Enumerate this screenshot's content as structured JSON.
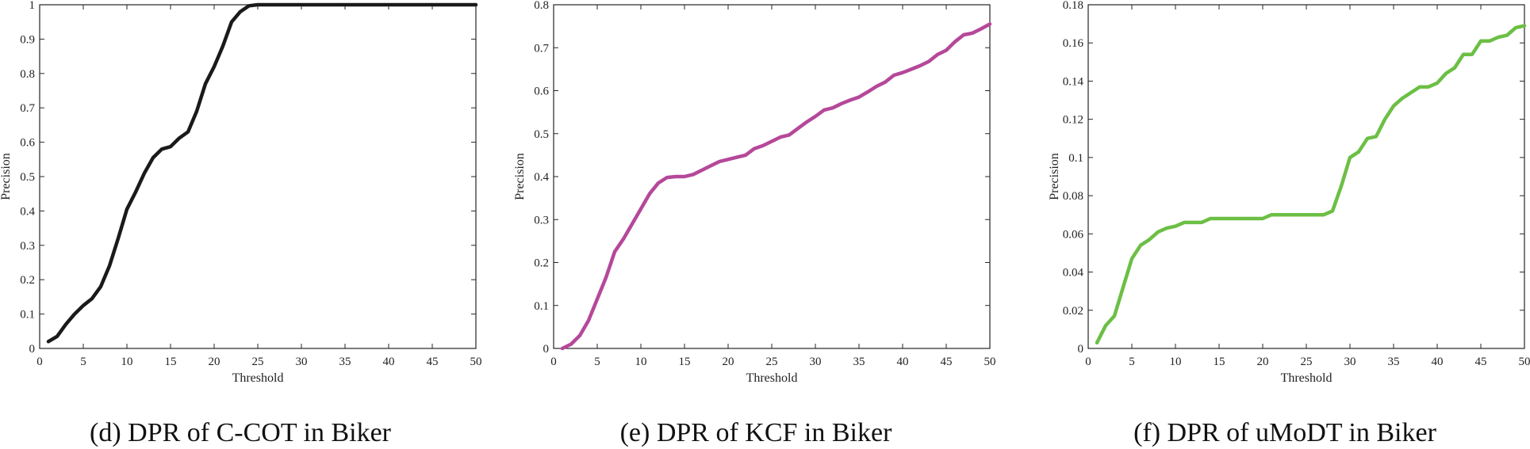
{
  "chart_data": [
    {
      "type": "line",
      "caption": "(d) DPR of C-COT in Biker",
      "xlabel": "Threshold",
      "ylabel": "Precision",
      "xlim": [
        0,
        50
      ],
      "ylim": [
        0,
        1
      ],
      "xticks": [
        0,
        5,
        10,
        15,
        20,
        25,
        30,
        35,
        40,
        45,
        50
      ],
      "yticks": [
        0,
        0.1,
        0.2,
        0.3,
        0.4,
        0.5,
        0.6,
        0.7,
        0.8,
        0.9,
        1
      ],
      "ytick_labels": [
        "0",
        "0.1",
        "0.2",
        "0.3",
        "0.4",
        "0.5",
        "0.6",
        "0.7",
        "0.8",
        "0.9",
        "1"
      ],
      "grid": false,
      "color": "#1a1a1a",
      "series": [
        {
          "name": "C-COT",
          "x": [
            1,
            2,
            3,
            4,
            5,
            6,
            7,
            8,
            9,
            10,
            11,
            12,
            13,
            14,
            15,
            16,
            17,
            18,
            19,
            20,
            21,
            22,
            23,
            24,
            25,
            26,
            30,
            35,
            40,
            45,
            50
          ],
          "y": [
            0.02,
            0.035,
            0.07,
            0.1,
            0.125,
            0.145,
            0.18,
            0.24,
            0.32,
            0.405,
            0.455,
            0.51,
            0.555,
            0.58,
            0.587,
            0.612,
            0.63,
            0.69,
            0.77,
            0.82,
            0.88,
            0.95,
            0.98,
            0.997,
            1,
            1,
            1,
            1,
            1,
            1,
            1
          ]
        }
      ]
    },
    {
      "type": "line",
      "caption": "(e) DPR of KCF in Biker",
      "xlabel": "Threshold",
      "ylabel": "Precision",
      "xlim": [
        0,
        50
      ],
      "ylim": [
        0,
        0.8
      ],
      "xticks": [
        0,
        5,
        10,
        15,
        20,
        25,
        30,
        35,
        40,
        45,
        50
      ],
      "yticks": [
        0,
        0.1,
        0.2,
        0.3,
        0.4,
        0.5,
        0.6,
        0.7,
        0.8
      ],
      "ytick_labels": [
        "0",
        "0.1",
        "0.2",
        "0.3",
        "0.4",
        "0.5",
        "0.6",
        "0.7",
        "0.8"
      ],
      "grid": false,
      "color": "#b5489a",
      "series": [
        {
          "name": "KCF",
          "x": [
            1,
            2,
            3,
            4,
            5,
            6,
            7,
            8,
            9,
            10,
            11,
            12,
            13,
            14,
            15,
            16,
            17,
            18,
            19,
            20,
            21,
            22,
            23,
            24,
            25,
            26,
            27,
            28,
            29,
            30,
            31,
            32,
            33,
            34,
            35,
            36,
            37,
            38,
            39,
            40,
            41,
            42,
            43,
            44,
            45,
            46,
            47,
            48,
            49,
            50
          ],
          "y": [
            0,
            0.01,
            0.03,
            0.065,
            0.115,
            0.165,
            0.225,
            0.255,
            0.29,
            0.325,
            0.36,
            0.385,
            0.398,
            0.4,
            0.4,
            0.405,
            0.415,
            0.425,
            0.435,
            0.44,
            0.445,
            0.45,
            0.465,
            0.472,
            0.482,
            0.492,
            0.497,
            0.512,
            0.527,
            0.54,
            0.555,
            0.56,
            0.57,
            0.578,
            0.585,
            0.597,
            0.61,
            0.62,
            0.636,
            0.642,
            0.65,
            0.658,
            0.668,
            0.684,
            0.694,
            0.714,
            0.73,
            0.734,
            0.744,
            0.755
          ]
        }
      ]
    },
    {
      "type": "line",
      "caption": "(f) DPR of uMoDT in Biker",
      "xlabel": "Threshold",
      "ylabel": "Precision",
      "xlim": [
        0,
        50
      ],
      "ylim": [
        0,
        0.18
      ],
      "xticks": [
        0,
        5,
        10,
        15,
        20,
        25,
        30,
        35,
        40,
        45,
        50
      ],
      "yticks": [
        0,
        0.02,
        0.04,
        0.06,
        0.08,
        0.1,
        0.12,
        0.14,
        0.16,
        0.18
      ],
      "ytick_labels": [
        "0",
        "0.02",
        "0.04",
        "0.06",
        "0.08",
        "0.1",
        "0.12",
        "0.14",
        "0.16",
        "0.18"
      ],
      "grid": false,
      "color": "#6cbf45",
      "series": [
        {
          "name": "uMoDT",
          "x": [
            1,
            2,
            3,
            4,
            5,
            6,
            7,
            8,
            9,
            10,
            11,
            12,
            13,
            14,
            15,
            16,
            17,
            18,
            19,
            20,
            21,
            22,
            23,
            24,
            25,
            26,
            27,
            28,
            29,
            30,
            31,
            32,
            33,
            34,
            35,
            36,
            37,
            38,
            39,
            40,
            41,
            42,
            43,
            44,
            45,
            46,
            47,
            48,
            49,
            50
          ],
          "y": [
            0.003,
            0.012,
            0.017,
            0.032,
            0.047,
            0.054,
            0.057,
            0.061,
            0.063,
            0.064,
            0.066,
            0.066,
            0.066,
            0.068,
            0.068,
            0.068,
            0.068,
            0.068,
            0.068,
            0.068,
            0.07,
            0.07,
            0.07,
            0.07,
            0.07,
            0.07,
            0.07,
            0.072,
            0.085,
            0.1,
            0.103,
            0.11,
            0.111,
            0.12,
            0.127,
            0.131,
            0.134,
            0.137,
            0.137,
            0.139,
            0.144,
            0.147,
            0.154,
            0.154,
            0.161,
            0.161,
            0.163,
            0.164,
            0.168,
            0.169
          ]
        }
      ]
    }
  ]
}
